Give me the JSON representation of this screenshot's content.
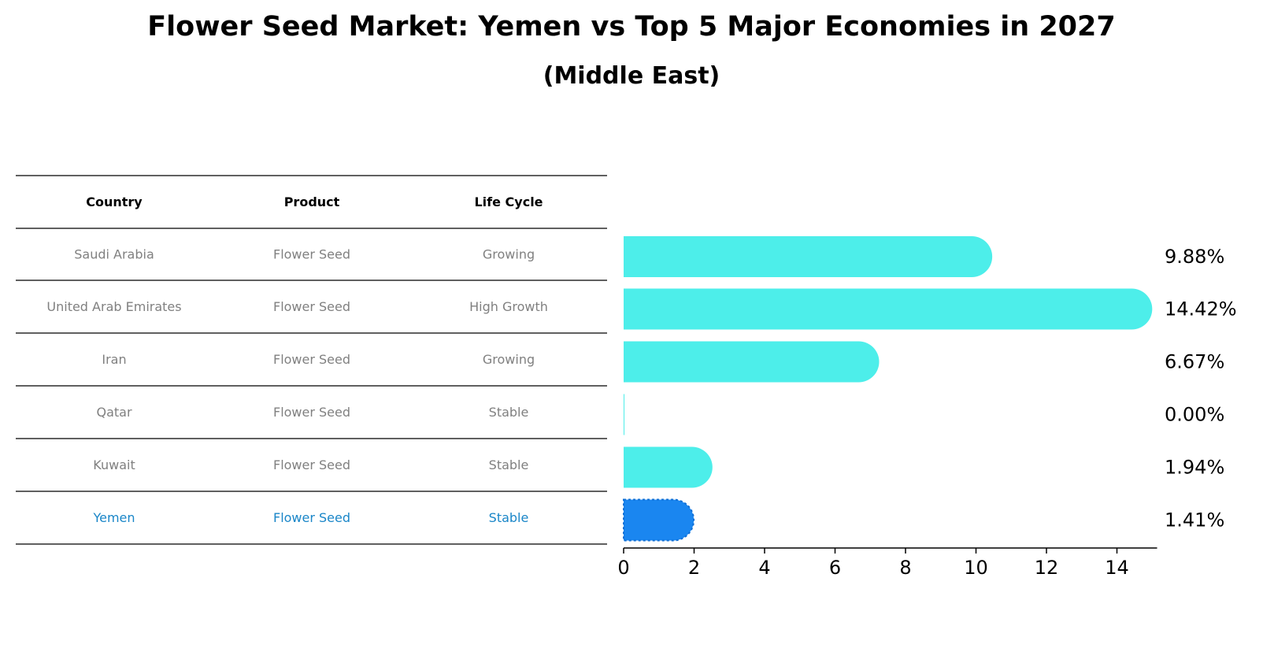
{
  "chart_data": {
    "type": "bar",
    "orientation": "horizontal",
    "title": "Flower Seed Market: Yemen vs Top 5 Major Economies in 2027",
    "subtitle": "(Middle East)",
    "table": {
      "columns": [
        "Country",
        "Product",
        "Life Cycle"
      ],
      "rows": [
        {
          "country": "Saudi Arabia",
          "product": "Flower Seed",
          "life_cycle": "Growing",
          "highlight": false
        },
        {
          "country": "United Arab Emirates",
          "product": "Flower Seed",
          "life_cycle": "High Growth",
          "highlight": false
        },
        {
          "country": "Iran",
          "product": "Flower Seed",
          "life_cycle": "Growing",
          "highlight": false
        },
        {
          "country": "Qatar",
          "product": "Flower Seed",
          "life_cycle": "Stable",
          "highlight": false
        },
        {
          "country": "Kuwait",
          "product": "Flower Seed",
          "life_cycle": "Stable",
          "highlight": false
        },
        {
          "country": "Yemen",
          "product": "Flower Seed",
          "life_cycle": "Stable",
          "highlight": true
        }
      ]
    },
    "categories": [
      "Saudi Arabia",
      "United Arab Emirates",
      "Iran",
      "Qatar",
      "Kuwait",
      "Yemen"
    ],
    "values": [
      9.88,
      14.42,
      6.67,
      0.0,
      1.94,
      1.41
    ],
    "value_labels": [
      "9.88%",
      "14.42%",
      "6.67%",
      "0.00%",
      "1.94%",
      "1.41%"
    ],
    "xlim": [
      0,
      15.14
    ],
    "xticks": [
      0,
      2,
      4,
      6,
      8,
      10,
      12,
      14
    ],
    "xlabel": "",
    "ylabel": "",
    "grid": false
  },
  "colors": {
    "bar": "#4DEEEA",
    "highlight_bar": "#1A86F0",
    "highlight_text": "#1A86C8",
    "muted_text": "#808080",
    "rule": "#000000"
  }
}
